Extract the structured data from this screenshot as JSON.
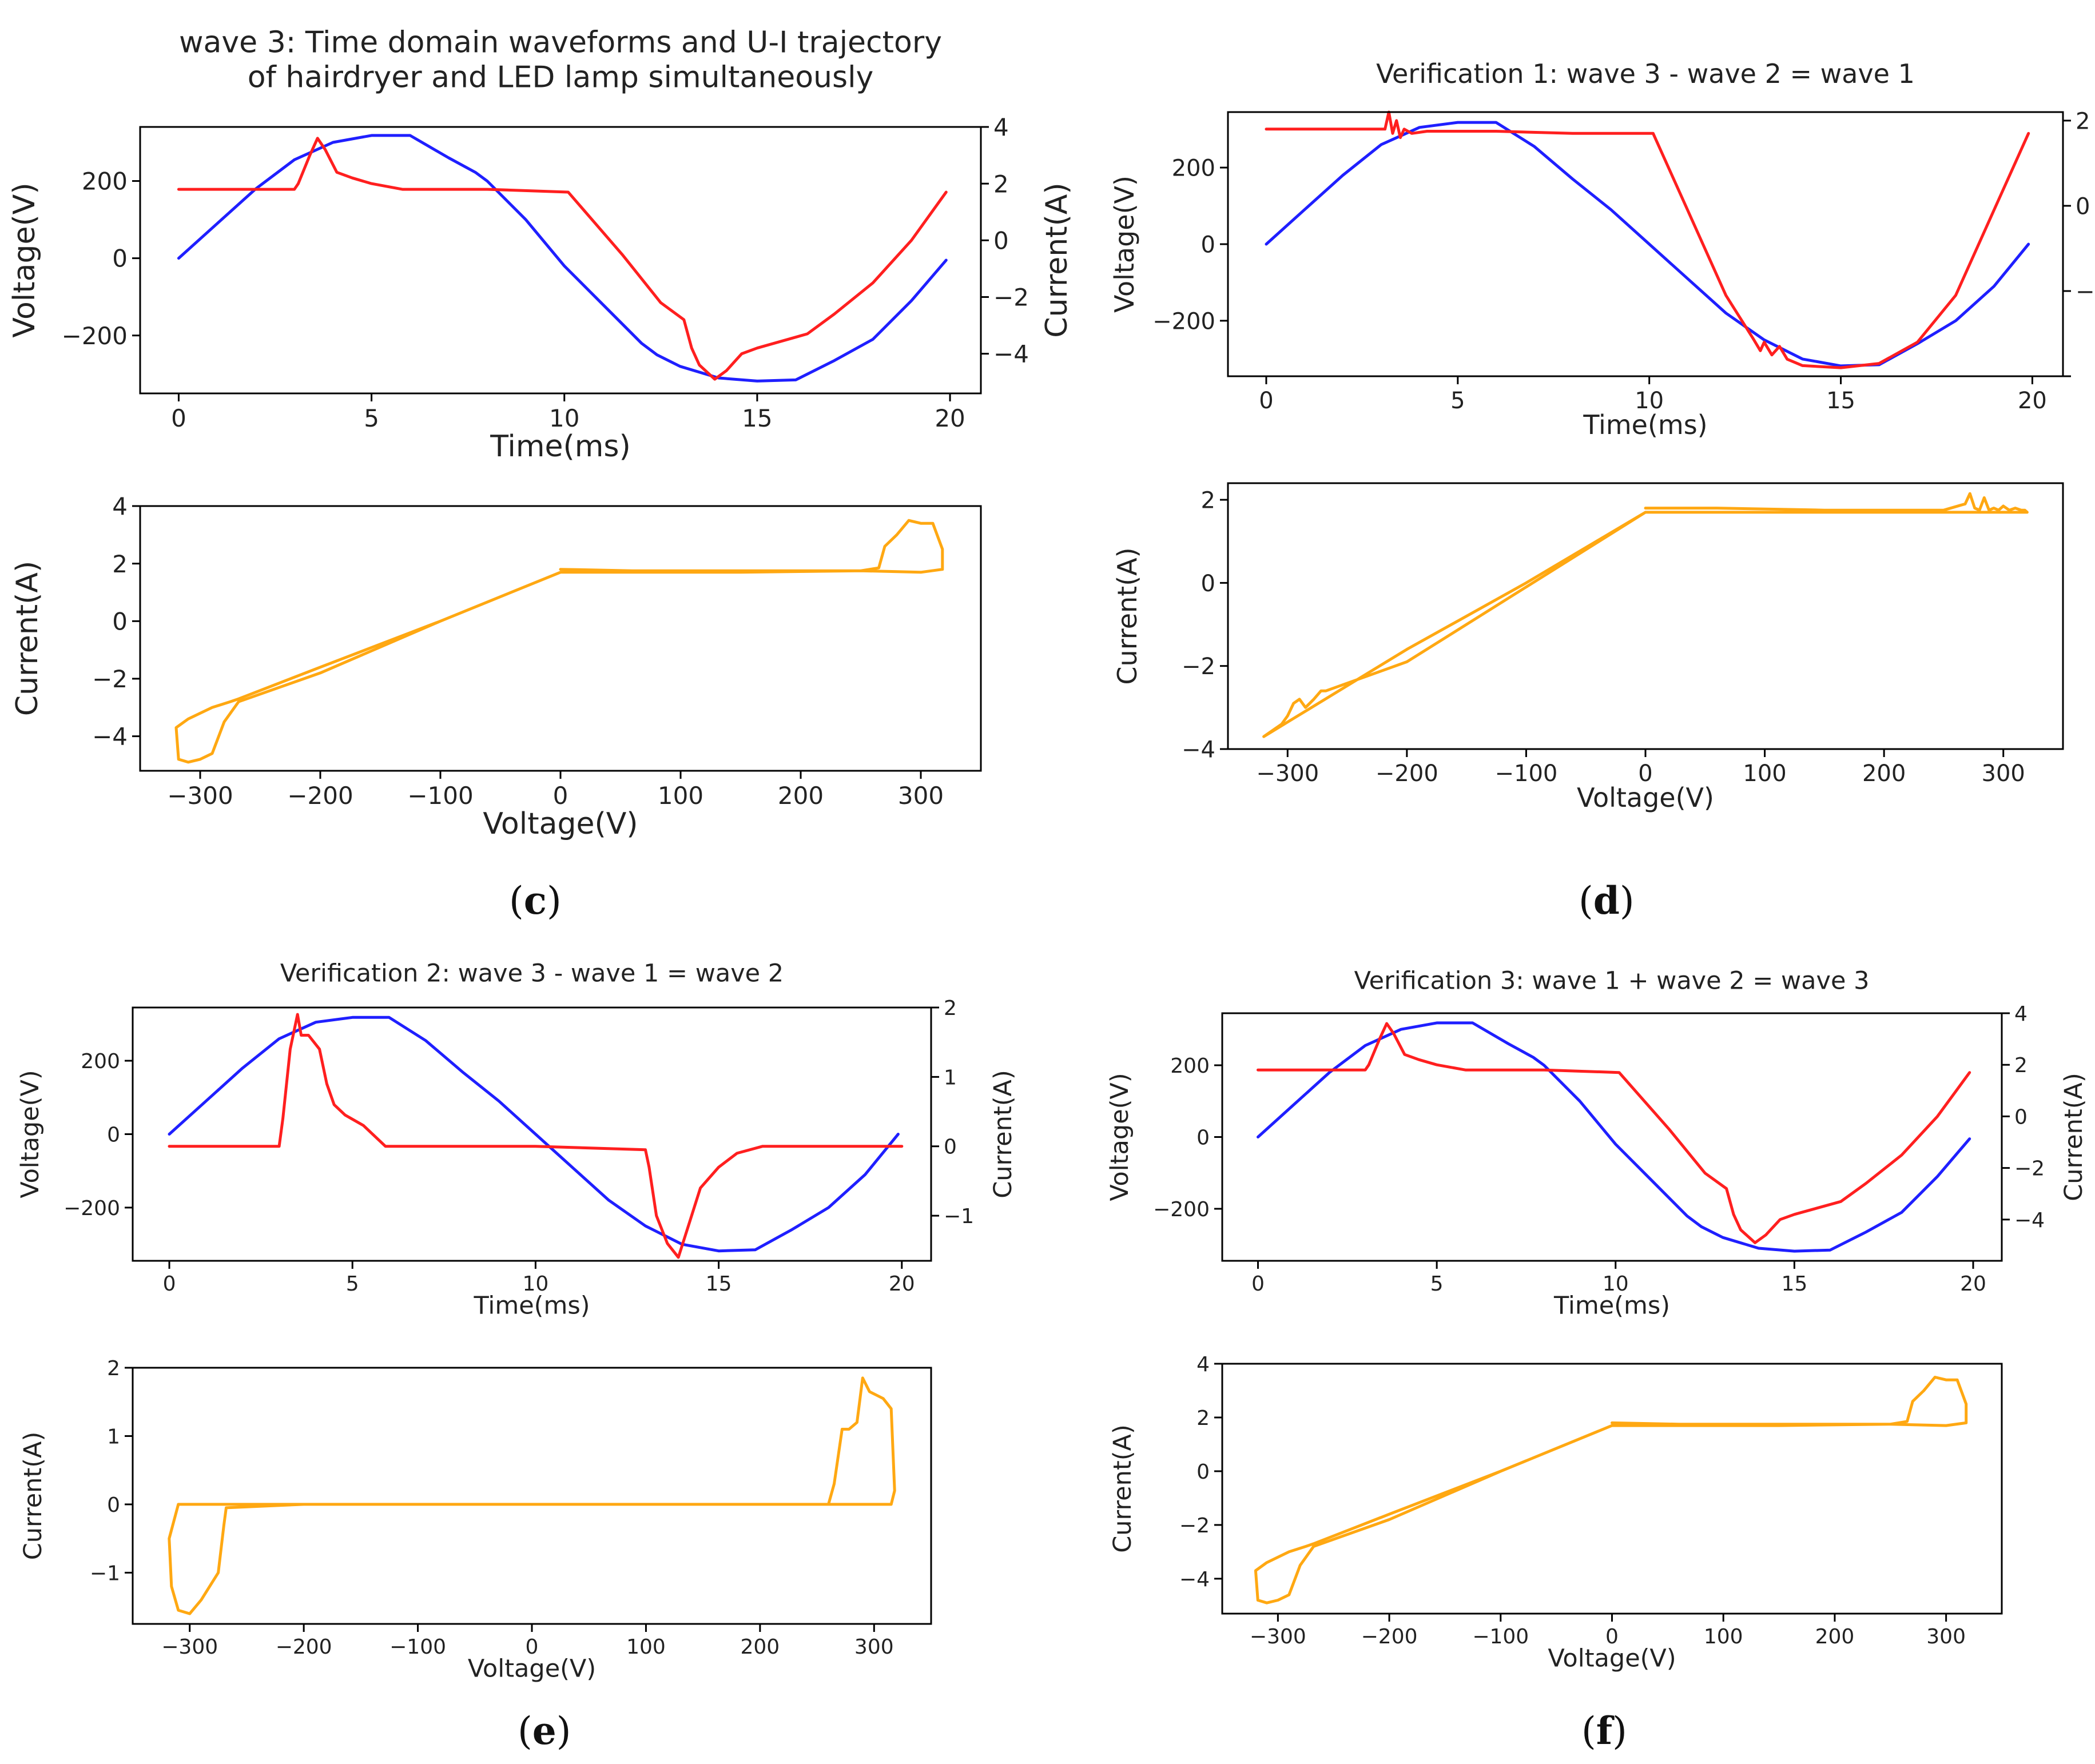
{
  "colors": {
    "voltage": "#1f1fff",
    "current": "#ff1f1f",
    "trajectory": "#ffa812",
    "axes": "#000000"
  },
  "chart_data": [
    {
      "id": "c",
      "panel_label": "(c)",
      "panel_letter": "c",
      "title_lines": [
        "wave 3: Time domain waveforms and U-I trajectory",
        "of hairdryer and LED lamp simultaneously"
      ],
      "time_plot": {
        "type": "line",
        "xlabel": "Time(ms)",
        "ylabel": "Voltage(V)",
        "y2label": "Current(A)",
        "xlim": [
          -1.0,
          20.8
        ],
        "ylim": [
          -350,
          340
        ],
        "y2lim": [
          -5.4,
          4.0
        ],
        "xticks": [
          0,
          5,
          10,
          15,
          20
        ],
        "yticks": [
          -200,
          0,
          200
        ],
        "y2ticks": [
          -4,
          -2,
          0,
          2,
          4
        ],
        "voltage": {
          "x": [
            0,
            1,
            2,
            3,
            4,
            5,
            6,
            7,
            7.7,
            8,
            9,
            10,
            11,
            12,
            12.4,
            13,
            14,
            15,
            16,
            17,
            18,
            19,
            19.9
          ],
          "y": [
            0,
            90,
            180,
            255,
            300,
            318,
            318,
            260,
            222,
            200,
            100,
            -20,
            -120,
            -220,
            -250,
            -280,
            -310,
            -318,
            -315,
            -265,
            -210,
            -110,
            -5
          ]
        },
        "current": {
          "x": [
            0,
            3,
            3.1,
            3.4,
            3.6,
            3.8,
            4.1,
            4.5,
            5,
            5.8,
            8,
            10.1,
            11.5,
            12.5,
            13.1,
            13.3,
            13.5,
            13.9,
            14.2,
            14.6,
            15,
            16.3,
            17,
            18,
            19,
            19.9
          ],
          "y": [
            1.8,
            1.8,
            2.0,
            3.0,
            3.6,
            3.2,
            2.4,
            2.2,
            2.0,
            1.8,
            1.8,
            1.7,
            -0.5,
            -2.2,
            -2.8,
            -3.8,
            -4.4,
            -4.9,
            -4.6,
            -4.0,
            -3.8,
            -3.3,
            -2.6,
            -1.5,
            0.0,
            1.7
          ]
        }
      },
      "ui_plot": {
        "type": "line",
        "xlabel": "Voltage(V)",
        "ylabel": "Current(A)",
        "xlim": [
          -350,
          350
        ],
        "ylim": [
          -5.2,
          4.0
        ],
        "xticks": [
          -300,
          -200,
          -100,
          0,
          100,
          200,
          300
        ],
        "yticks": [
          -4,
          -2,
          0,
          2,
          4
        ],
        "x": [
          0,
          60,
          150,
          250,
          265,
          270,
          280,
          290,
          300,
          310,
          318,
          318,
          300,
          250,
          150,
          60,
          0,
          0,
          -100,
          -200,
          -268,
          -280,
          -290,
          -300,
          -310,
          -318,
          -320,
          -310,
          -290,
          -275,
          -268,
          -200,
          -100,
          0
        ],
        "y": [
          1.8,
          1.75,
          1.75,
          1.75,
          1.85,
          2.6,
          3.0,
          3.5,
          3.4,
          3.4,
          2.5,
          1.8,
          1.7,
          1.75,
          1.7,
          1.7,
          1.7,
          1.7,
          0.0,
          -1.8,
          -2.8,
          -3.5,
          -4.6,
          -4.8,
          -4.9,
          -4.8,
          -3.7,
          -3.4,
          -3.0,
          -2.8,
          -2.7,
          -1.6,
          0.0,
          1.7
        ]
      }
    },
    {
      "id": "d",
      "panel_label": "(d)",
      "panel_letter": "d",
      "title_lines": [
        "Verification 1: wave 3 - wave 2 = wave 1"
      ],
      "time_plot": {
        "type": "line",
        "xlabel": "Time(ms)",
        "ylabel": "Voltage(V)",
        "y2label": "",
        "xlim": [
          -1.0,
          20.8
        ],
        "ylim": [
          -345,
          345
        ],
        "y2lim": [
          -4.0,
          2.2
        ],
        "xticks": [
          0,
          5,
          10,
          15,
          20
        ],
        "yticks": [
          -200,
          0,
          200
        ],
        "y2ticks": [
          -4,
          -2,
          0,
          2
        ],
        "y2ticklabels": [
          "",
          "−",
          "0",
          "2"
        ],
        "voltage": {
          "x": [
            0,
            1,
            2,
            3,
            4,
            5,
            6,
            7,
            8,
            9,
            10,
            11,
            12,
            13,
            14,
            15,
            16,
            17,
            18,
            19,
            19.9
          ],
          "y": [
            0,
            90,
            180,
            260,
            305,
            318,
            318,
            255,
            170,
            90,
            0,
            -90,
            -180,
            -250,
            -300,
            -318,
            -315,
            -260,
            -200,
            -110,
            0
          ]
        },
        "current": {
          "x": [
            0,
            3,
            3.1,
            3.2,
            3.3,
            3.4,
            3.5,
            3.6,
            3.8,
            4.2,
            6,
            8,
            10.1,
            11,
            12,
            12.7,
            12.9,
            13,
            13.2,
            13.4,
            13.6,
            14,
            15,
            16,
            17,
            18,
            19,
            19.9
          ],
          "y": [
            1.8,
            1.8,
            1.8,
            2.2,
            1.7,
            2.0,
            1.6,
            1.8,
            1.7,
            1.75,
            1.75,
            1.7,
            1.7,
            -0.1,
            -2.1,
            -3.1,
            -3.4,
            -3.2,
            -3.5,
            -3.3,
            -3.6,
            -3.75,
            -3.8,
            -3.7,
            -3.2,
            -2.1,
            -0.1,
            1.7
          ]
        }
      },
      "ui_plot": {
        "type": "line",
        "xlabel": "Voltage(V)",
        "ylabel": "Current(A)",
        "xlim": [
          -350,
          350
        ],
        "ylim": [
          -4.0,
          2.4
        ],
        "xticks": [
          -300,
          -200,
          -100,
          0,
          100,
          200,
          300
        ],
        "yticks": [
          -4,
          -2,
          0,
          2
        ],
        "x": [
          0,
          60,
          150,
          250,
          268,
          272,
          276,
          280,
          284,
          288,
          292,
          296,
          300,
          305,
          310,
          315,
          318,
          320,
          300,
          200,
          100,
          0,
          -100,
          -200,
          -268,
          -272,
          -278,
          -285,
          -290,
          -295,
          -300,
          -305,
          -310,
          -315,
          -320,
          -300,
          -200,
          -100,
          0
        ],
        "y": [
          1.8,
          1.8,
          1.75,
          1.75,
          1.9,
          2.15,
          1.8,
          1.75,
          2.05,
          1.75,
          1.8,
          1.75,
          1.85,
          1.75,
          1.8,
          1.75,
          1.75,
          1.7,
          1.7,
          1.7,
          1.7,
          1.7,
          -0.1,
          -1.9,
          -2.6,
          -2.6,
          -2.8,
          -3.0,
          -2.8,
          -2.9,
          -3.2,
          -3.4,
          -3.5,
          -3.6,
          -3.7,
          -3.35,
          -1.6,
          0.0,
          1.7
        ]
      }
    },
    {
      "id": "e",
      "panel_label": "(e)",
      "panel_letter": "e",
      "title_lines": [
        "Verification 2: wave 3 - wave 1 = wave 2"
      ],
      "time_plot": {
        "type": "line",
        "xlabel": "Time(ms)",
        "ylabel": "Voltage(V)",
        "y2label": "Current(A)",
        "xlim": [
          -1.0,
          20.8
        ],
        "ylim": [
          -345,
          345
        ],
        "y2lim": [
          -1.65,
          2.0
        ],
        "xticks": [
          0,
          5,
          10,
          15,
          20
        ],
        "yticks": [
          -200,
          0,
          200
        ],
        "y2ticks": [
          -1,
          0,
          1,
          2
        ],
        "voltage": {
          "x": [
            0,
            1,
            2,
            3,
            4,
            5,
            6,
            7,
            8,
            9,
            10,
            11,
            12,
            13,
            14,
            15,
            16,
            17,
            18,
            19,
            19.9
          ],
          "y": [
            0,
            90,
            180,
            260,
            305,
            318,
            318,
            255,
            170,
            90,
            0,
            -90,
            -180,
            -250,
            -300,
            -318,
            -315,
            -260,
            -200,
            -110,
            0
          ]
        },
        "current": {
          "x": [
            0,
            3,
            3.1,
            3.3,
            3.5,
            3.6,
            3.8,
            4.1,
            4.3,
            4.5,
            4.8,
            5.3,
            5.9,
            6.5,
            10,
            13,
            13.1,
            13.3,
            13.6,
            13.9,
            14.2,
            14.5,
            15,
            15.5,
            16.2,
            20
          ],
          "y": [
            0.0,
            0.0,
            0.4,
            1.4,
            1.9,
            1.6,
            1.6,
            1.4,
            0.9,
            0.6,
            0.45,
            0.3,
            0.0,
            0.0,
            0.0,
            -0.05,
            -0.3,
            -1.0,
            -1.4,
            -1.6,
            -1.1,
            -0.6,
            -0.3,
            -0.1,
            0.0,
            0.0
          ]
        }
      },
      "ui_plot": {
        "type": "line",
        "xlabel": "Voltage(V)",
        "ylabel": "Current(A)",
        "xlim": [
          -350,
          350
        ],
        "ylim": [
          -1.75,
          2.0
        ],
        "xticks": [
          -300,
          -200,
          -100,
          0,
          100,
          200,
          300
        ],
        "yticks": [
          -1,
          0,
          1,
          2
        ],
        "x": [
          0,
          100,
          200,
          260,
          265,
          272,
          278,
          285,
          290,
          296,
          302,
          308,
          315,
          318,
          315,
          300,
          200,
          100,
          0,
          -100,
          -200,
          -268,
          -270,
          -275,
          -290,
          -300,
          -310,
          -316,
          -318,
          -310,
          -290,
          -275,
          -268,
          -200,
          -100,
          0
        ],
        "y": [
          0.0,
          0.0,
          0.0,
          0.0,
          0.3,
          1.1,
          1.1,
          1.2,
          1.85,
          1.65,
          1.6,
          1.55,
          1.4,
          0.2,
          0.0,
          0.0,
          0.0,
          0.0,
          0.0,
          0.0,
          0.0,
          -0.05,
          -0.3,
          -1.0,
          -1.4,
          -1.6,
          -1.55,
          -1.2,
          -0.5,
          0.0,
          0.0,
          0.0,
          0.0,
          0.0,
          0.0,
          0.0
        ]
      }
    },
    {
      "id": "f",
      "panel_label": "(f)",
      "panel_letter": "f",
      "title_lines": [
        "Verification 3: wave 1 + wave 2 = wave 3"
      ],
      "time_plot": {
        "type": "line",
        "xlabel": "Time(ms)",
        "ylabel": "Voltage(V)",
        "y2label": "Current(A)",
        "xlim": [
          -1.0,
          20.8
        ],
        "ylim": [
          -345,
          345
        ],
        "y2lim": [
          -5.6,
          4.0
        ],
        "xticks": [
          0,
          5,
          10,
          15,
          20
        ],
        "yticks": [
          -200,
          0,
          200
        ],
        "y2ticks": [
          -4,
          -2,
          0,
          2,
          4
        ],
        "voltage": {
          "x": [
            0,
            1,
            2,
            3,
            4,
            5,
            6,
            7,
            7.7,
            8,
            9,
            10,
            11,
            12,
            12.4,
            13,
            14,
            15,
            16,
            17,
            18,
            19,
            19.9
          ],
          "y": [
            0,
            90,
            180,
            255,
            300,
            318,
            318,
            260,
            222,
            200,
            100,
            -20,
            -120,
            -220,
            -250,
            -280,
            -310,
            -318,
            -315,
            -265,
            -210,
            -110,
            -5
          ]
        },
        "current": {
          "x": [
            0,
            3,
            3.1,
            3.4,
            3.6,
            3.8,
            4.1,
            4.5,
            5,
            5.8,
            8,
            10.1,
            11.5,
            12.5,
            13.1,
            13.3,
            13.5,
            13.9,
            14.2,
            14.6,
            15,
            16.3,
            17,
            18,
            19,
            19.9
          ],
          "y": [
            1.8,
            1.8,
            2.0,
            3.0,
            3.6,
            3.2,
            2.4,
            2.2,
            2.0,
            1.8,
            1.8,
            1.7,
            -0.5,
            -2.2,
            -2.8,
            -3.8,
            -4.4,
            -4.9,
            -4.6,
            -4.0,
            -3.8,
            -3.3,
            -2.6,
            -1.5,
            0.0,
            1.7
          ]
        }
      },
      "ui_plot": {
        "type": "line",
        "xlabel": "Voltage(V)",
        "ylabel": "Current(A)",
        "xlim": [
          -350,
          350
        ],
        "ylim": [
          -5.3,
          4.0
        ],
        "xticks": [
          -300,
          -200,
          -100,
          0,
          100,
          200,
          300
        ],
        "yticks": [
          -4,
          -2,
          0,
          2,
          4
        ],
        "x": [
          0,
          60,
          150,
          250,
          265,
          270,
          280,
          290,
          300,
          310,
          318,
          318,
          300,
          250,
          150,
          60,
          0,
          0,
          -100,
          -200,
          -268,
          -280,
          -290,
          -300,
          -310,
          -318,
          -320,
          -310,
          -290,
          -275,
          -268,
          -200,
          -100,
          0
        ],
        "y": [
          1.8,
          1.75,
          1.75,
          1.75,
          1.85,
          2.6,
          3.0,
          3.5,
          3.4,
          3.4,
          2.5,
          1.8,
          1.7,
          1.75,
          1.7,
          1.7,
          1.7,
          1.7,
          0.0,
          -1.8,
          -2.8,
          -3.5,
          -4.6,
          -4.8,
          -4.9,
          -4.8,
          -3.7,
          -3.4,
          -3.0,
          -2.8,
          -2.7,
          -1.6,
          0.0,
          1.7
        ]
      }
    }
  ]
}
